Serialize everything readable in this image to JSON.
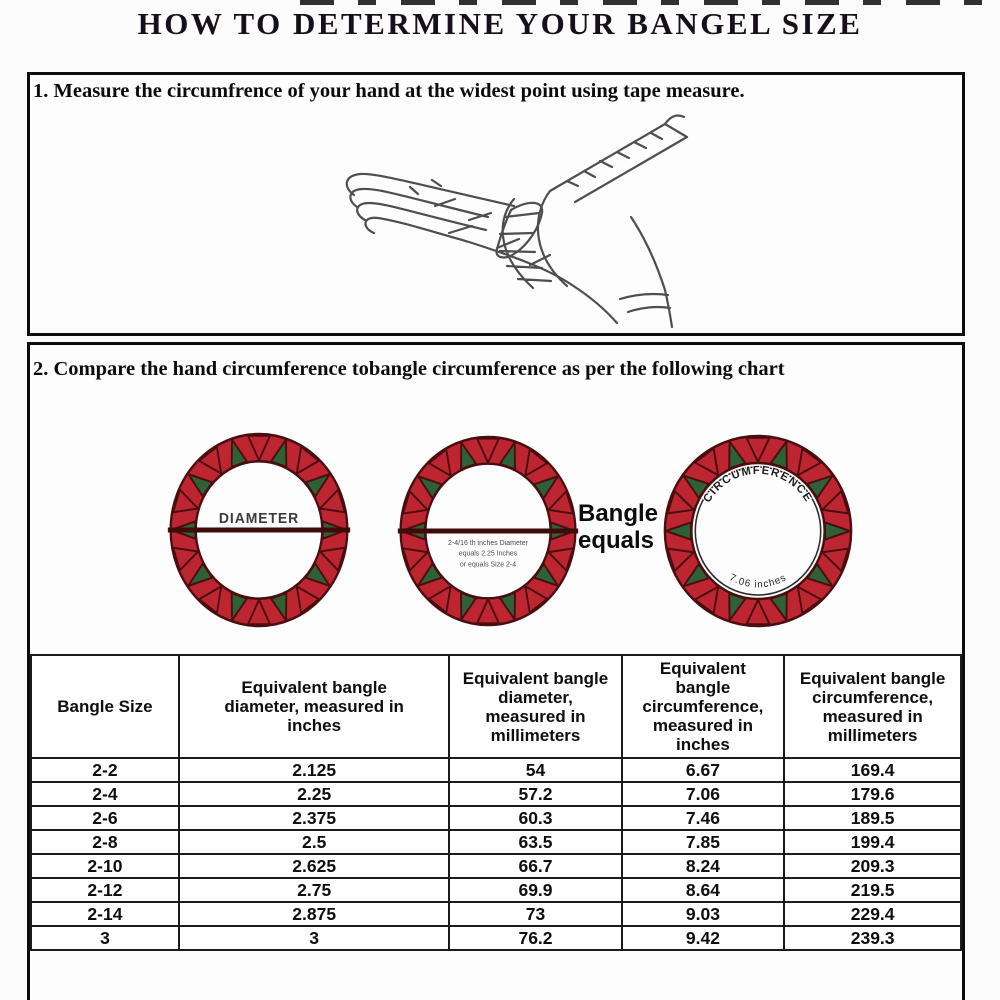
{
  "title": "HOW TO DETERMINE YOUR BANGEL SIZE",
  "step1": {
    "heading": "1. Measure the circumfrence of your hand at the widest point using tape measure."
  },
  "step2": {
    "heading": "2. Compare the hand circumference tobangle circumference as per the following chart"
  },
  "diagram": {
    "bangle_diameter_label": "DIAMETER",
    "bangle2_caption": {
      "line1": "2-4/16 th inches Diameter",
      "line2": "equals 2.25 Inches",
      "line3": "or equals Size 2-4"
    },
    "equals_label": {
      "line1": "Bangle",
      "line2": "equals"
    },
    "bangle3": {
      "arc_label": "CIRCUMFERENCE",
      "bottom_label": "7.06 inches"
    },
    "colors": {
      "ring_red": "#bd2630",
      "ring_green": "#2f6136",
      "ring_outline": "#4a0d10",
      "diameter_line": "#3f0c0c"
    }
  },
  "chart_data": {
    "type": "table",
    "columns": [
      "Bangle Size",
      "Equivalent bangle diameter, measured in inches",
      "Equivalent bangle diameter, measured in millimeters",
      "Equivalent bangle circumference, measured in inches",
      "Equivalent bangle circumference, measured in millimeters"
    ],
    "rows": [
      [
        "2-2",
        "2.125",
        "54",
        "6.67",
        "169.4"
      ],
      [
        "2-4",
        "2.25",
        "57.2",
        "7.06",
        "179.6"
      ],
      [
        "2-6",
        "2.375",
        "60.3",
        "7.46",
        "189.5"
      ],
      [
        "2-8",
        "2.5",
        "63.5",
        "7.85",
        "199.4"
      ],
      [
        "2-10",
        "2.625",
        "66.7",
        "8.24",
        "209.3"
      ],
      [
        "2-12",
        "2.75",
        "69.9",
        "8.64",
        "219.5"
      ],
      [
        "2-14",
        "2.875",
        "73",
        "9.03",
        "229.4"
      ],
      [
        "3",
        "3",
        "76.2",
        "9.42",
        "239.3"
      ]
    ]
  }
}
